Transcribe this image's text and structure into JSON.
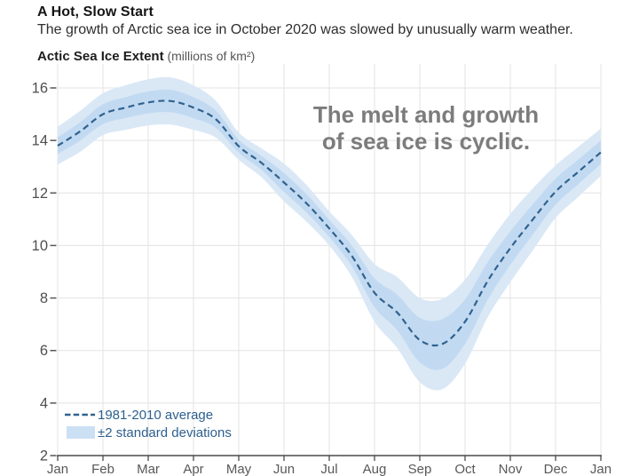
{
  "header": {
    "title": "A Hot, Slow Start",
    "subtitle": "The growth of Arctic sea ice in October 2020 was slowed by unusually warm weather.",
    "axis_title": "Actic Sea Ice Extent",
    "axis_title_units": " (millions of km²)"
  },
  "annotation": {
    "line1": "The melt and growth",
    "line2": "of sea ice is cyclic."
  },
  "legend": {
    "avg_label": "1981-2010 average",
    "band_label": "±2 standard deviations",
    "position": "bottom-left"
  },
  "chart_data": {
    "type": "line",
    "title": "A Hot, Slow Start",
    "xlabel": "",
    "ylabel": "Actic Sea Ice Extent (millions of km²)",
    "grid": true,
    "x_tick_labels": [
      "Jan",
      "Feb",
      "Mar",
      "Apr",
      "May",
      "Jun",
      "Jul",
      "Aug",
      "Sep",
      "Oct",
      "Nov",
      "Dec",
      "Jan"
    ],
    "y_ticks": [
      2,
      4,
      6,
      8,
      10,
      12,
      14,
      16
    ],
    "ylim": [
      2,
      16.6
    ],
    "x_months": [
      0,
      0.5,
      1,
      1.5,
      2,
      2.5,
      3,
      3.5,
      4,
      4.5,
      5,
      5.5,
      6,
      6.5,
      7,
      7.5,
      8,
      8.5,
      9,
      9.5,
      10,
      10.5,
      11,
      11.5,
      12
    ],
    "series": [
      {
        "name": "1981-2010 average",
        "style": "dashed",
        "values": [
          13.8,
          14.35,
          15.0,
          15.25,
          15.45,
          15.5,
          15.25,
          14.8,
          13.78,
          13.15,
          12.4,
          11.6,
          10.65,
          9.6,
          8.2,
          7.45,
          6.4,
          6.25,
          7.1,
          8.65,
          9.9,
          11.0,
          12.05,
          12.8,
          13.55
        ]
      },
      {
        "name": "±2 standard deviations",
        "style": "band",
        "upper": [
          14.52,
          15.13,
          15.8,
          16.1,
          16.33,
          16.4,
          16.1,
          15.5,
          14.3,
          13.7,
          13.12,
          12.3,
          11.3,
          10.4,
          9.3,
          8.8,
          8.0,
          7.97,
          8.7,
          10.03,
          11.2,
          12.18,
          13.05,
          13.75,
          14.45
        ],
        "lower": [
          13.08,
          13.57,
          14.2,
          14.4,
          14.57,
          14.6,
          14.4,
          14.1,
          13.26,
          12.6,
          11.68,
          10.9,
          10.0,
          8.8,
          7.1,
          6.1,
          4.8,
          4.53,
          5.5,
          7.27,
          8.6,
          9.82,
          11.05,
          11.85,
          12.65
        ]
      },
      {
        "name": "inner band",
        "style": "band",
        "upper": [
          14.12,
          14.7,
          15.38,
          15.65,
          15.87,
          15.93,
          15.65,
          15.13,
          14.03,
          13.42,
          12.76,
          11.95,
          10.98,
          10.0,
          8.75,
          8.13,
          7.25,
          7.2,
          7.95,
          9.37,
          10.54,
          11.58,
          12.55,
          13.27,
          14.0
        ],
        "lower": [
          13.48,
          14.0,
          14.62,
          14.85,
          15.03,
          15.07,
          14.85,
          14.47,
          13.53,
          12.88,
          12.04,
          11.25,
          10.32,
          9.2,
          7.65,
          6.77,
          5.55,
          5.3,
          6.25,
          7.93,
          9.26,
          10.42,
          11.55,
          12.33,
          13.1
        ]
      }
    ],
    "colors": {
      "band_outer": "#dae8f6",
      "band_inner": "#c2daf1",
      "line": "#30628f",
      "legend_text": "#2d5f8e",
      "legend_swatch": "#cce0f4",
      "grid": "#e3e3e3",
      "axis": "#4a4a4a",
      "tick_label": "#4f4f4f"
    }
  }
}
